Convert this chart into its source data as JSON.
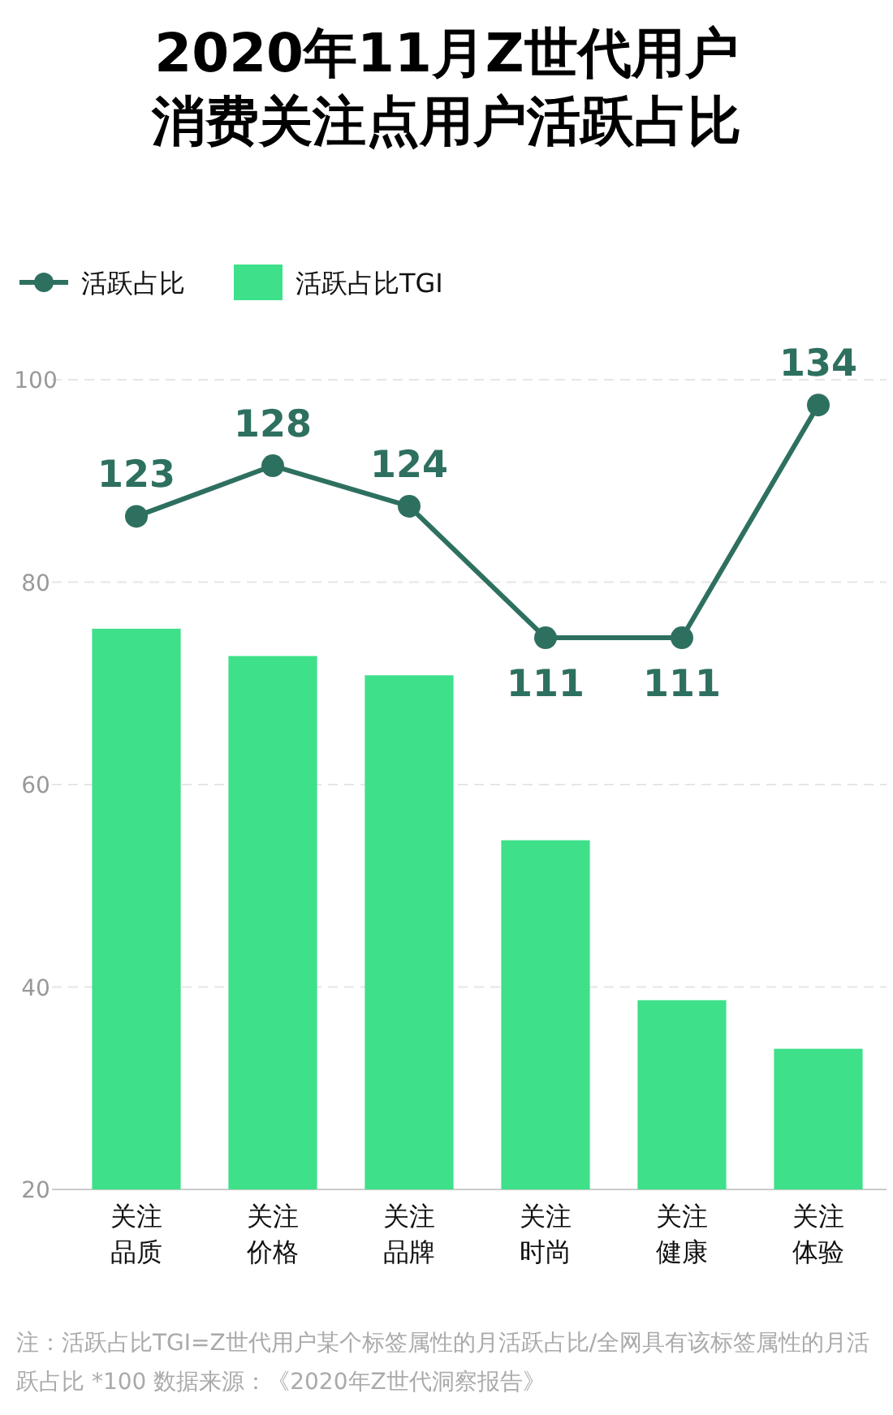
{
  "chart_data": {
    "type": "bar",
    "title": "2020年11月Z世代用户消费关注点用户活跃占比",
    "categories": [
      "关注品质",
      "关注价格",
      "关注品牌",
      "关注时尚",
      "关注健康",
      "关注体验"
    ],
    "series": [
      {
        "name": "活跃占比",
        "type": "line",
        "axis": "y2",
        "color": "#2e7060",
        "marker": "circle",
        "values": [
          123,
          128,
          124,
          111,
          111,
          134
        ],
        "value_labels": [
          "123",
          "128",
          "124",
          "111",
          "111",
          "134"
        ]
      },
      {
        "name": "活跃占比TGI",
        "color": "#3ee08a",
        "values": [
          75.4,
          72.7,
          70.8,
          54.5,
          38.7,
          33.9
        ]
      }
    ],
    "ylim": [
      20,
      100
    ],
    "yticks": [
      20,
      40,
      60,
      80,
      100
    ],
    "y2lim": [
      56.5,
      136.5
    ],
    "grid": "y",
    "legend": "top left",
    "annotations": [
      "注：活跃占比TGI=Z世代用户某个标签属性的月活跃占比/全网具有该标签属性的月活跃占比 *100  数据来源：《2020年Z世代洞察报告》"
    ]
  }
}
